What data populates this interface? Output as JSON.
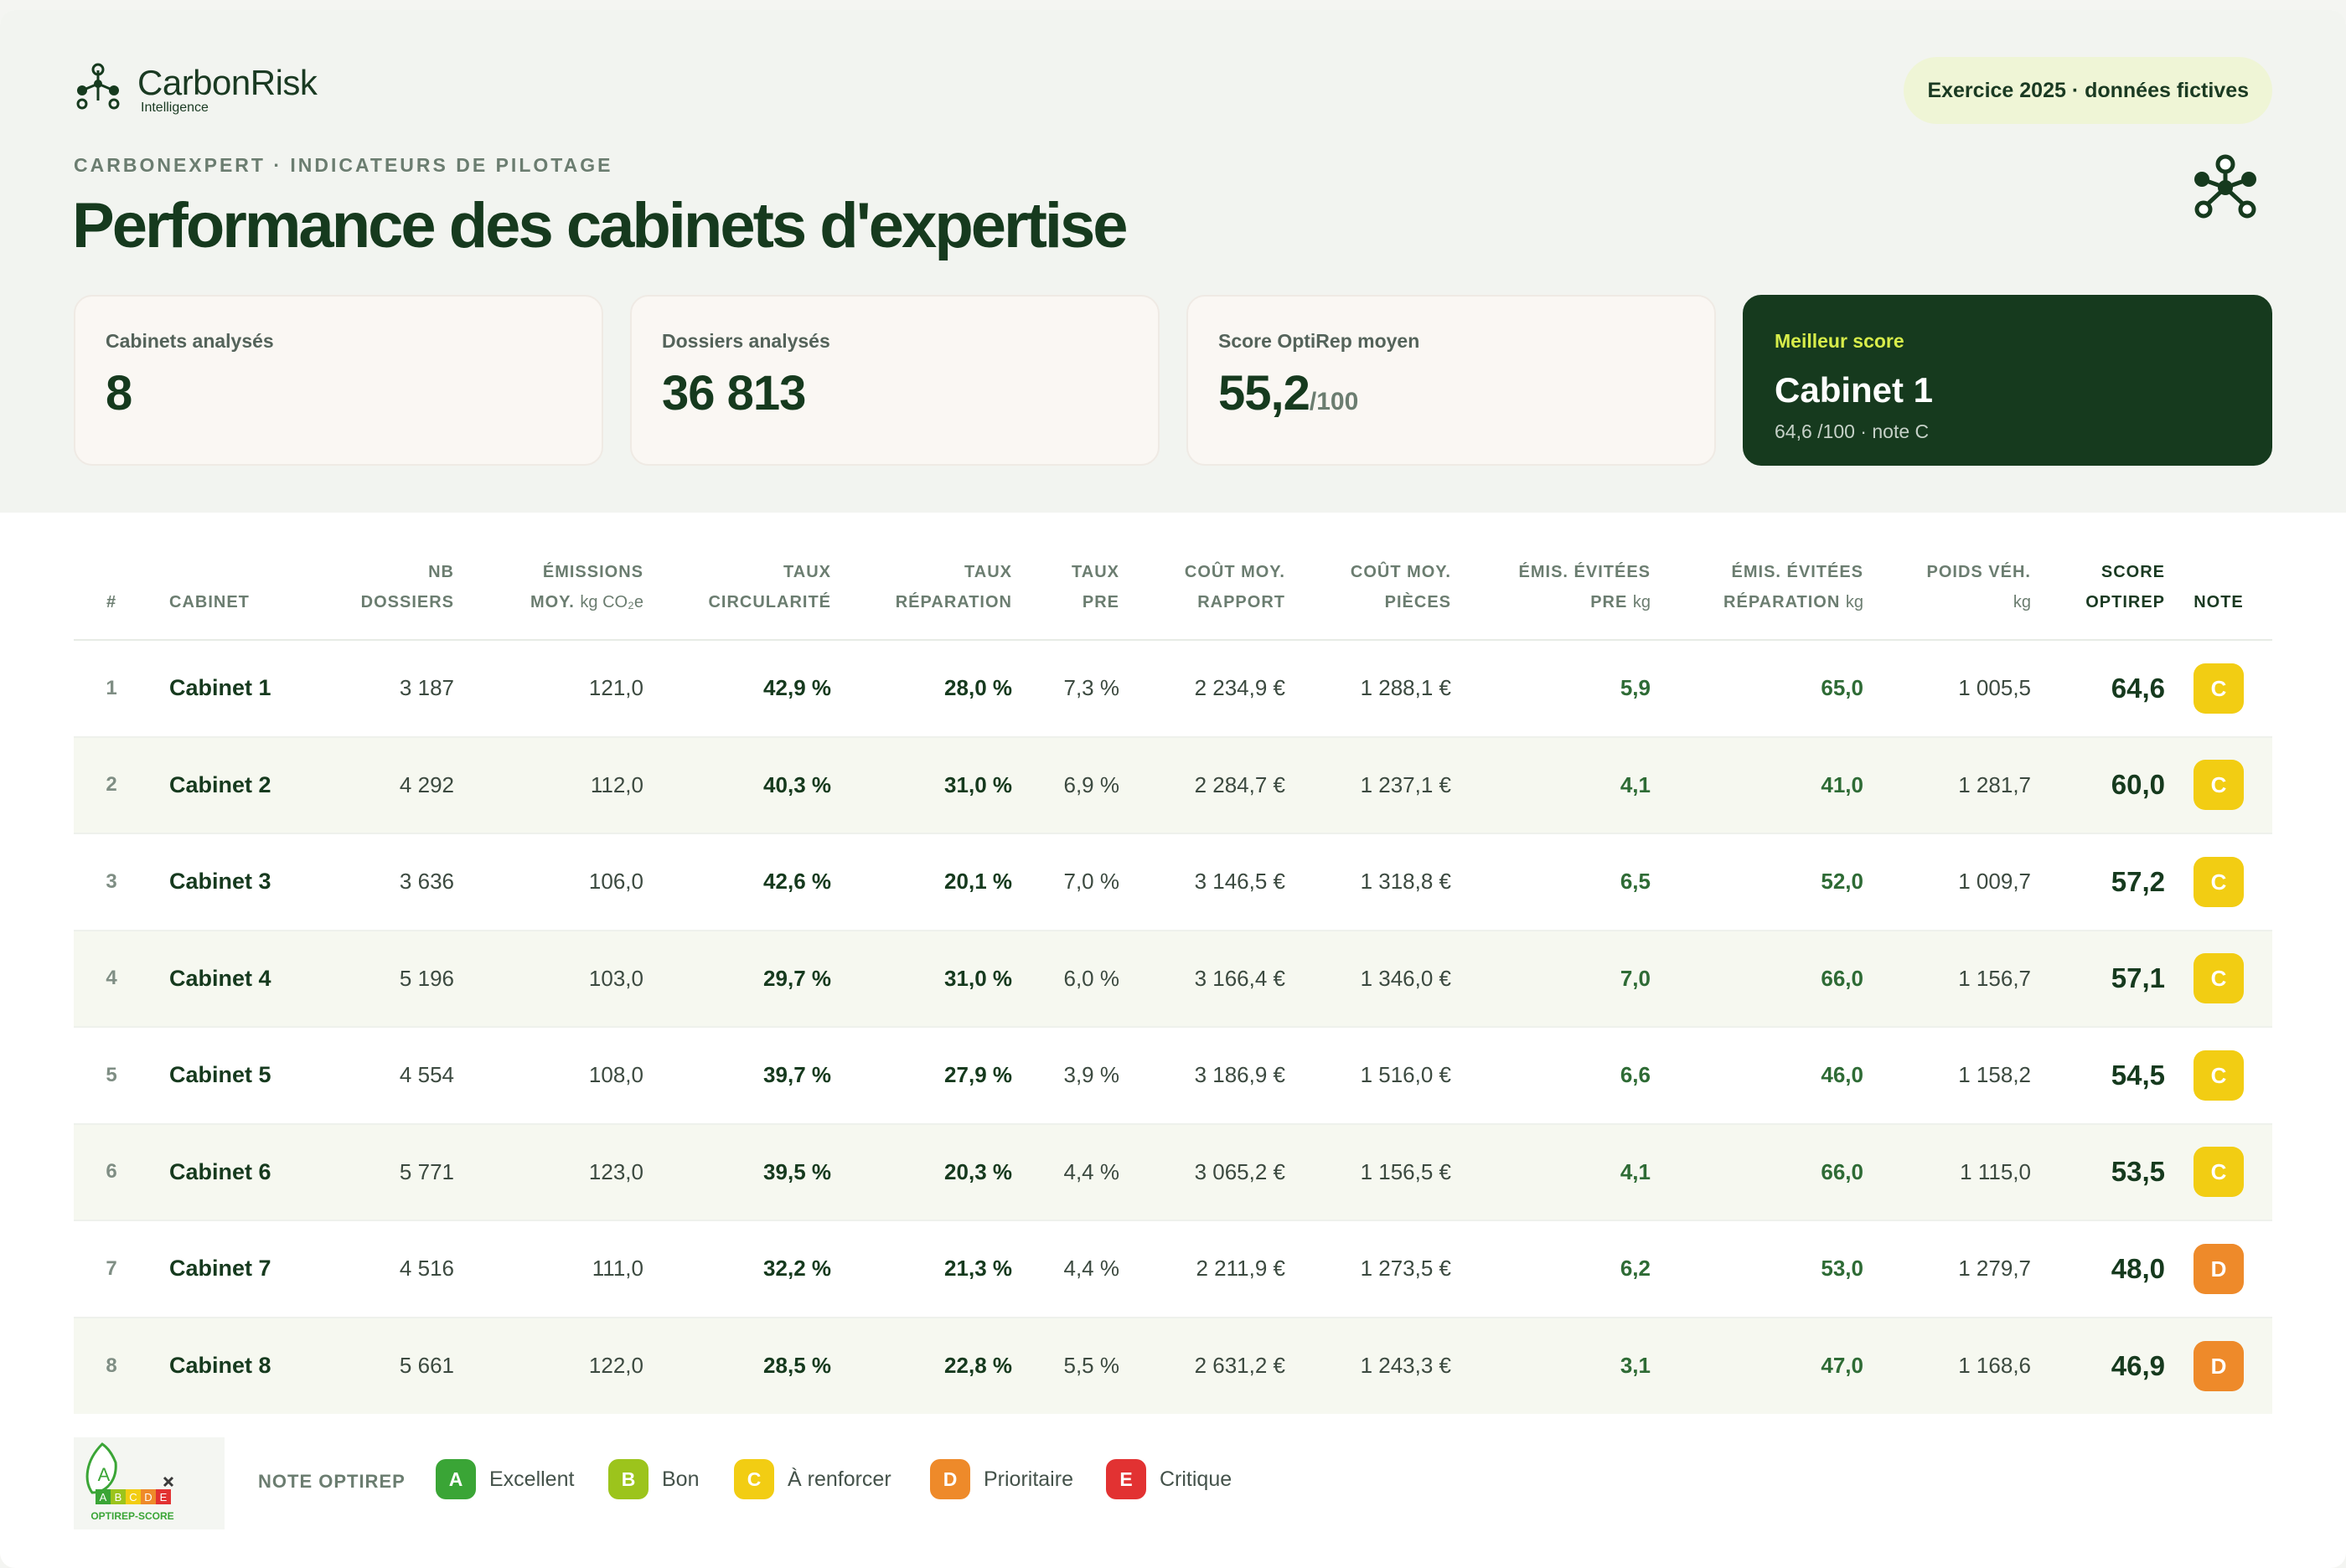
{
  "brand": {
    "name": "CarbonRisk",
    "sub": "Intelligence"
  },
  "exercise_pill": "Exercice 2025 · données fictives",
  "eyebrow": "CARBONEXPERT · INDICATEURS DE PILOTAGE",
  "title": "Performance des cabinets d'expertise",
  "kpis": [
    {
      "label": "Cabinets analysés",
      "value": "8"
    },
    {
      "label": "Dossiers analysés",
      "value": "36 813"
    },
    {
      "label": "Score OptiRep moyen",
      "value": "55,2",
      "unit": "/100"
    }
  ],
  "best": {
    "label": "Meilleur score",
    "value": "Cabinet 1",
    "sub": "64,6 /100 · note C"
  },
  "table": {
    "headers": {
      "rank": "#",
      "cabinet": "CABINET",
      "dossiers": [
        "NB",
        "DOSSIERS"
      ],
      "emissions": [
        "ÉMISSIONS",
        "MOY.",
        "kg CO₂e"
      ],
      "circularite": [
        "TAUX",
        "CIRCULARITÉ"
      ],
      "reparation": [
        "TAUX",
        "RÉPARATION"
      ],
      "pre": [
        "TAUX",
        "PRE"
      ],
      "cout_rapport": [
        "COÛT MOY.",
        "RAPPORT"
      ],
      "cout_pieces": [
        "COÛT MOY.",
        "PIÈCES"
      ],
      "emis_pre": [
        "ÉMIS. ÉVITÉES",
        "PRE",
        "kg"
      ],
      "emis_rep": [
        "ÉMIS. ÉVITÉES",
        "RÉPARATION",
        "kg"
      ],
      "poids": [
        "POIDS VÉH.",
        "kg"
      ],
      "score": [
        "SCORE",
        "OPTIREP"
      ],
      "note": "NOTE"
    },
    "rows": [
      {
        "rank": "1",
        "name": "Cabinet 1",
        "dossiers": "3 187",
        "emissions": "121,0",
        "circ": "42,9 %",
        "rep": "28,0 %",
        "pre": "7,3 %",
        "cout_rapport": "2 234,9 €",
        "cout_pieces": "1 288,1 €",
        "emis_pre": "5,9",
        "emis_rep": "65,0",
        "poids": "1 005,5",
        "score": "64,6",
        "note": "C"
      },
      {
        "rank": "2",
        "name": "Cabinet 2",
        "dossiers": "4 292",
        "emissions": "112,0",
        "circ": "40,3 %",
        "rep": "31,0 %",
        "pre": "6,9 %",
        "cout_rapport": "2 284,7 €",
        "cout_pieces": "1 237,1 €",
        "emis_pre": "4,1",
        "emis_rep": "41,0",
        "poids": "1 281,7",
        "score": "60,0",
        "note": "C"
      },
      {
        "rank": "3",
        "name": "Cabinet 3",
        "dossiers": "3 636",
        "emissions": "106,0",
        "circ": "42,6 %",
        "rep": "20,1 %",
        "pre": "7,0 %",
        "cout_rapport": "3 146,5 €",
        "cout_pieces": "1 318,8 €",
        "emis_pre": "6,5",
        "emis_rep": "52,0",
        "poids": "1 009,7",
        "score": "57,2",
        "note": "C"
      },
      {
        "rank": "4",
        "name": "Cabinet 4",
        "dossiers": "5 196",
        "emissions": "103,0",
        "circ": "29,7 %",
        "rep": "31,0 %",
        "pre": "6,0 %",
        "cout_rapport": "3 166,4 €",
        "cout_pieces": "1 346,0 €",
        "emis_pre": "7,0",
        "emis_rep": "66,0",
        "poids": "1 156,7",
        "score": "57,1",
        "note": "C"
      },
      {
        "rank": "5",
        "name": "Cabinet 5",
        "dossiers": "4 554",
        "emissions": "108,0",
        "circ": "39,7 %",
        "rep": "27,9 %",
        "pre": "3,9 %",
        "cout_rapport": "3 186,9 €",
        "cout_pieces": "1 516,0 €",
        "emis_pre": "6,6",
        "emis_rep": "46,0",
        "poids": "1 158,2",
        "score": "54,5",
        "note": "C"
      },
      {
        "rank": "6",
        "name": "Cabinet 6",
        "dossiers": "5 771",
        "emissions": "123,0",
        "circ": "39,5 %",
        "rep": "20,3 %",
        "pre": "4,4 %",
        "cout_rapport": "3 065,2 €",
        "cout_pieces": "1 156,5 €",
        "emis_pre": "4,1",
        "emis_rep": "66,0",
        "poids": "1 115,0",
        "score": "53,5",
        "note": "C"
      },
      {
        "rank": "7",
        "name": "Cabinet 7",
        "dossiers": "4 516",
        "emissions": "111,0",
        "circ": "32,2 %",
        "rep": "21,3 %",
        "pre": "4,4 %",
        "cout_rapport": "2 211,9 €",
        "cout_pieces": "1 273,5 €",
        "emis_pre": "6,2",
        "emis_rep": "53,0",
        "poids": "1 279,7",
        "score": "48,0",
        "note": "D"
      },
      {
        "rank": "8",
        "name": "Cabinet 8",
        "dossiers": "5 661",
        "emissions": "122,0",
        "circ": "28,5 %",
        "rep": "22,8 %",
        "pre": "5,5 %",
        "cout_rapport": "2 631,2 €",
        "cout_pieces": "1 243,3 €",
        "emis_pre": "3,1",
        "emis_rep": "47,0",
        "poids": "1 168,6",
        "score": "46,9",
        "note": "D"
      }
    ]
  },
  "legend": {
    "title": "NOTE OPTIREP",
    "logo_letters": [
      "A",
      "B",
      "C",
      "D",
      "E"
    ],
    "logo_caption": "OPTIREP-SCORE",
    "logo_big": "A",
    "items": [
      {
        "grade": "A",
        "label": "Excellent",
        "color": "#3aa536"
      },
      {
        "grade": "B",
        "label": "Bon",
        "color": "#9cc41c"
      },
      {
        "grade": "C",
        "label": "À renforcer",
        "color": "#f2cd13"
      },
      {
        "grade": "D",
        "label": "Prioritaire",
        "color": "#ee8a2a"
      },
      {
        "grade": "E",
        "label": "Critique",
        "color": "#e23232"
      }
    ]
  },
  "colors": {
    "brand_dark": "#163a1e",
    "accent_lime": "#d7ec4a",
    "grade_C": "#f2cd13",
    "grade_D": "#ee8a2a"
  },
  "icons": [
    "molecule-logo-icon",
    "molecule-hero-icon",
    "optirep-leaf-icon"
  ]
}
